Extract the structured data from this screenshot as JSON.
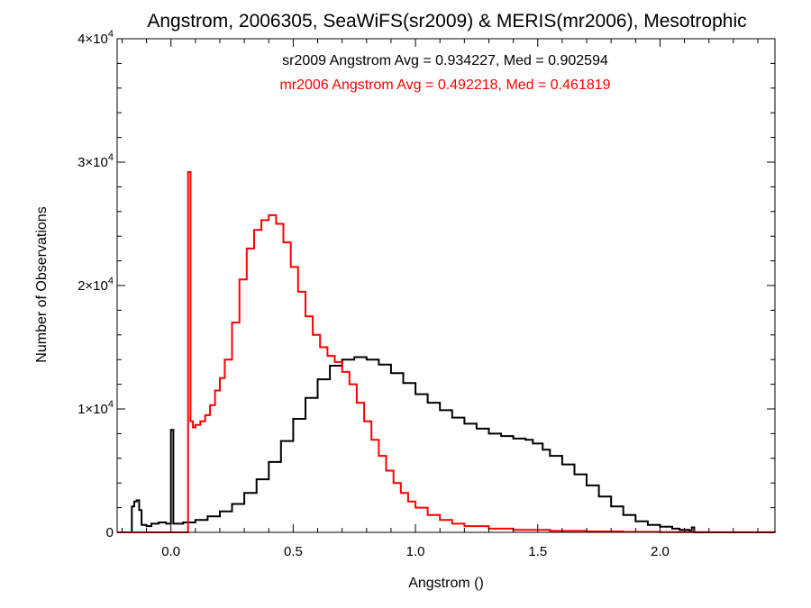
{
  "chart_data": {
    "type": "line",
    "title": "Angstrom, 2006305, SeaWiFS(sr2009) & MERIS(mr2006), Mesotrophic",
    "xlabel": "Angstrom ()",
    "ylabel": "Number of Observations",
    "xlim": [
      -0.22,
      2.47
    ],
    "ylim": [
      0,
      40000
    ],
    "x_ticks": [
      {
        "value": 0.0,
        "label": "0.0"
      },
      {
        "value": 0.5,
        "label": "0.5"
      },
      {
        "value": 1.0,
        "label": "1.0"
      },
      {
        "value": 1.5,
        "label": "1.5"
      },
      {
        "value": 2.0,
        "label": "2.0"
      }
    ],
    "y_ticks": [
      {
        "value": 0,
        "base": "0",
        "exp": ""
      },
      {
        "value": 10000,
        "base": "1×10",
        "exp": "4"
      },
      {
        "value": 20000,
        "base": "2×10",
        "exp": "4"
      },
      {
        "value": 30000,
        "base": "3×10",
        "exp": "4"
      },
      {
        "value": 40000,
        "base": "4×10",
        "exp": "4"
      }
    ],
    "annotations": [
      {
        "text": "sr2009 Angstrom Avg = 0.934227, Med = 0.902594",
        "color": "#000000"
      },
      {
        "text": "mr2006 Angstrom Avg = 0.492218, Med = 0.461819",
        "color": "#ff0000"
      }
    ],
    "grid": false,
    "style": "histogram-step",
    "series": [
      {
        "color": "#000000",
        "points": [
          [
            -0.22,
            0
          ],
          [
            -0.16,
            0
          ],
          [
            -0.16,
            2100
          ],
          [
            -0.15,
            2500
          ],
          [
            -0.14,
            2600
          ],
          [
            -0.13,
            1800
          ],
          [
            -0.12,
            600
          ],
          [
            -0.1,
            500
          ],
          [
            -0.08,
            700
          ],
          [
            -0.05,
            800
          ],
          [
            -0.02,
            700
          ],
          [
            0.0,
            650
          ],
          [
            0.0,
            8300
          ],
          [
            0.01,
            8300
          ],
          [
            0.01,
            700
          ],
          [
            0.05,
            800
          ],
          [
            0.1,
            1000
          ],
          [
            0.15,
            1300
          ],
          [
            0.2,
            1700
          ],
          [
            0.25,
            2300
          ],
          [
            0.3,
            3200
          ],
          [
            0.35,
            4300
          ],
          [
            0.4,
            5700
          ],
          [
            0.45,
            7400
          ],
          [
            0.5,
            9200
          ],
          [
            0.55,
            10900
          ],
          [
            0.6,
            12400
          ],
          [
            0.65,
            13500
          ],
          [
            0.7,
            14000
          ],
          [
            0.75,
            14200
          ],
          [
            0.8,
            14000
          ],
          [
            0.85,
            13600
          ],
          [
            0.9,
            12900
          ],
          [
            0.95,
            12100
          ],
          [
            1.0,
            11200
          ],
          [
            1.05,
            10500
          ],
          [
            1.1,
            9900
          ],
          [
            1.15,
            9300
          ],
          [
            1.2,
            8800
          ],
          [
            1.25,
            8400
          ],
          [
            1.3,
            8000
          ],
          [
            1.35,
            7800
          ],
          [
            1.4,
            7600
          ],
          [
            1.45,
            7500
          ],
          [
            1.48,
            7200
          ],
          [
            1.52,
            6700
          ],
          [
            1.55,
            6200
          ],
          [
            1.6,
            5500
          ],
          [
            1.65,
            4700
          ],
          [
            1.7,
            3800
          ],
          [
            1.75,
            2900
          ],
          [
            1.8,
            2100
          ],
          [
            1.85,
            1400
          ],
          [
            1.9,
            900
          ],
          [
            1.95,
            600
          ],
          [
            2.0,
            450
          ],
          [
            2.05,
            300
          ],
          [
            2.08,
            200
          ],
          [
            2.12,
            100
          ],
          [
            2.13,
            400
          ],
          [
            2.14,
            400
          ],
          [
            2.14,
            0
          ],
          [
            2.47,
            0
          ]
        ]
      },
      {
        "color": "#ff0000",
        "points": [
          [
            -0.22,
            0
          ],
          [
            0.07,
            0
          ],
          [
            0.07,
            29200
          ],
          [
            0.08,
            29200
          ],
          [
            0.08,
            9000
          ],
          [
            0.09,
            8500
          ],
          [
            0.1,
            8700
          ],
          [
            0.12,
            9000
          ],
          [
            0.14,
            9500
          ],
          [
            0.16,
            10300
          ],
          [
            0.18,
            11500
          ],
          [
            0.2,
            12500
          ],
          [
            0.22,
            14000
          ],
          [
            0.25,
            17000
          ],
          [
            0.28,
            20500
          ],
          [
            0.31,
            23000
          ],
          [
            0.34,
            24500
          ],
          [
            0.37,
            25300
          ],
          [
            0.4,
            25700
          ],
          [
            0.43,
            25000
          ],
          [
            0.46,
            23500
          ],
          [
            0.49,
            21500
          ],
          [
            0.52,
            19500
          ],
          [
            0.55,
            17500
          ],
          [
            0.58,
            16000
          ],
          [
            0.61,
            15000
          ],
          [
            0.64,
            14300
          ],
          [
            0.67,
            13800
          ],
          [
            0.7,
            13000
          ],
          [
            0.73,
            12000
          ],
          [
            0.76,
            10500
          ],
          [
            0.79,
            9000
          ],
          [
            0.82,
            7500
          ],
          [
            0.85,
            6200
          ],
          [
            0.88,
            5000
          ],
          [
            0.91,
            4000
          ],
          [
            0.94,
            3200
          ],
          [
            0.97,
            2500
          ],
          [
            1.0,
            2000
          ],
          [
            1.05,
            1400
          ],
          [
            1.1,
            1000
          ],
          [
            1.15,
            700
          ],
          [
            1.2,
            500
          ],
          [
            1.3,
            300
          ],
          [
            1.4,
            200
          ],
          [
            1.55,
            120
          ],
          [
            1.7,
            70
          ],
          [
            1.85,
            40
          ],
          [
            2.0,
            20
          ],
          [
            2.2,
            10
          ],
          [
            2.47,
            0
          ]
        ]
      }
    ]
  }
}
